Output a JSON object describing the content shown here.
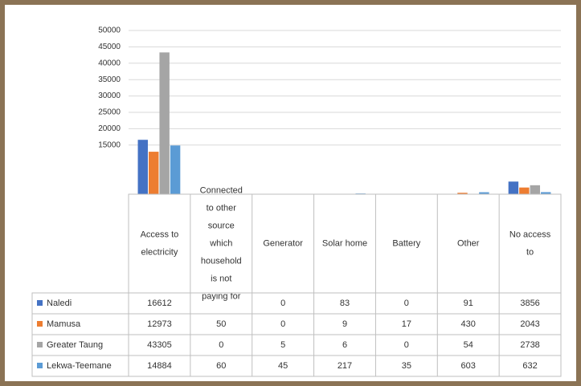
{
  "chart_data": {
    "type": "bar",
    "categories": [
      "Access to electricity",
      "Connected to other source which household is not paying for",
      "Generator",
      "Solar home",
      "Battery",
      "Other",
      "No access to"
    ],
    "series": [
      {
        "name": "Naledi",
        "color": "#4472c4",
        "values": [
          16612,
          null,
          0,
          83,
          0,
          91,
          3856
        ]
      },
      {
        "name": "Mamusa",
        "color": "#ed7d31",
        "values": [
          12973,
          50,
          0,
          9,
          17,
          430,
          2043
        ]
      },
      {
        "name": "Greater Taung",
        "color": "#a5a5a5",
        "values": [
          43305,
          0,
          5,
          6,
          0,
          54,
          2738
        ]
      },
      {
        "name": "Lekwa-Teemane",
        "color": "#5b9bd5",
        "values": [
          14884,
          60,
          45,
          217,
          35,
          603,
          632
        ]
      }
    ],
    "ylim": [
      0,
      50000
    ],
    "yticks": [
      15000,
      20000,
      25000,
      30000,
      35000,
      40000,
      45000,
      50000
    ],
    "grid": true,
    "legend": "data-table"
  }
}
